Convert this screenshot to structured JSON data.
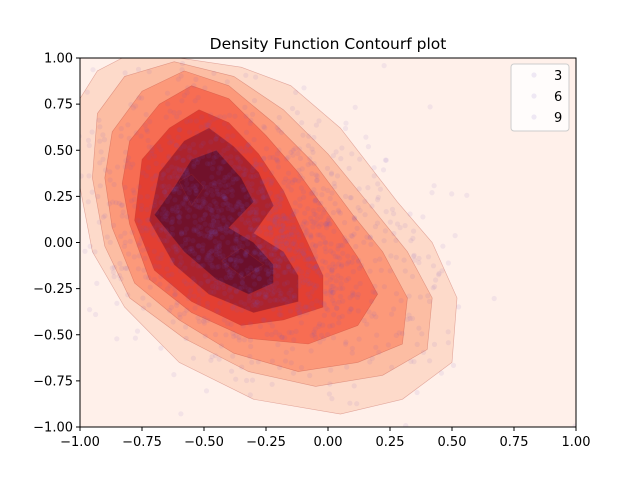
{
  "chart_data": {
    "type": "contourf",
    "title": "Density Function Contourf plot",
    "xlabel": "",
    "ylabel": "",
    "xlim": [
      -1.0,
      1.0
    ],
    "ylim": [
      -1.0,
      1.0
    ],
    "xticks": [
      "−1.00",
      "−0.75",
      "−0.50",
      "−0.25",
      "0.00",
      "0.25",
      "0.50",
      "0.75",
      "1.00"
    ],
    "yticks": [
      "1.00",
      "0.75",
      "0.50",
      "0.25",
      "0.00",
      "−0.25",
      "−0.50",
      "−0.75",
      "−1.00"
    ],
    "xtick_values": [
      -1.0,
      -0.75,
      -0.5,
      -0.25,
      0.0,
      0.25,
      0.5,
      0.75,
      1.0
    ],
    "ytick_values": [
      1.0,
      0.75,
      0.5,
      0.25,
      0.0,
      -0.25,
      -0.5,
      -0.75,
      -1.0
    ],
    "grid": false,
    "legend": {
      "placement": "top-right",
      "entries": [
        "3",
        "6",
        "9"
      ]
    },
    "colormap": [
      "#fff0ea",
      "#fdd7c7",
      "#fcb99f",
      "#fc9576",
      "#f6684f",
      "#e03a2f",
      "#a5202c",
      "#6a102b"
    ],
    "scatter_color": "#7a5cc8",
    "levels": [
      [
        [
          -1.0,
          0.78
        ],
        [
          -0.93,
          0.93
        ],
        [
          -0.83,
          1.0
        ],
        [
          -0.6,
          1.0
        ],
        [
          -0.35,
          0.95
        ],
        [
          -0.15,
          0.85
        ],
        [
          0.05,
          0.62
        ],
        [
          0.28,
          0.22
        ],
        [
          0.42,
          0.0
        ],
        [
          0.52,
          -0.3
        ],
        [
          0.5,
          -0.65
        ],
        [
          0.3,
          -0.85
        ],
        [
          0.05,
          -0.93
        ],
        [
          -0.3,
          -0.85
        ],
        [
          -0.6,
          -0.65
        ],
        [
          -0.82,
          -0.35
        ],
        [
          -0.95,
          -0.05
        ],
        [
          -1.0,
          0.3
        ]
      ],
      [
        [
          -0.93,
          0.7
        ],
        [
          -0.82,
          0.9
        ],
        [
          -0.62,
          0.98
        ],
        [
          -0.38,
          0.9
        ],
        [
          -0.18,
          0.72
        ],
        [
          0.0,
          0.48
        ],
        [
          0.17,
          0.2
        ],
        [
          0.32,
          -0.05
        ],
        [
          0.42,
          -0.3
        ],
        [
          0.4,
          -0.58
        ],
        [
          0.22,
          -0.72
        ],
        [
          -0.05,
          -0.78
        ],
        [
          -0.32,
          -0.7
        ],
        [
          -0.58,
          -0.52
        ],
        [
          -0.8,
          -0.3
        ],
        [
          -0.9,
          -0.02
        ],
        [
          -0.95,
          0.35
        ]
      ],
      [
        [
          -0.87,
          0.6
        ],
        [
          -0.75,
          0.82
        ],
        [
          -0.58,
          0.93
        ],
        [
          -0.4,
          0.85
        ],
        [
          -0.22,
          0.65
        ],
        [
          -0.05,
          0.42
        ],
        [
          0.1,
          0.15
        ],
        [
          0.22,
          -0.05
        ],
        [
          0.32,
          -0.3
        ],
        [
          0.3,
          -0.55
        ],
        [
          0.12,
          -0.65
        ],
        [
          -0.12,
          -0.7
        ],
        [
          -0.38,
          -0.6
        ],
        [
          -0.6,
          -0.42
        ],
        [
          -0.78,
          -0.22
        ],
        [
          -0.87,
          0.08
        ],
        [
          -0.9,
          0.35
        ]
      ],
      [
        [
          -0.8,
          0.55
        ],
        [
          -0.68,
          0.75
        ],
        [
          -0.55,
          0.85
        ],
        [
          -0.4,
          0.78
        ],
        [
          -0.25,
          0.58
        ],
        [
          -0.12,
          0.38
        ],
        [
          0.02,
          0.12
        ],
        [
          0.12,
          -0.08
        ],
        [
          0.2,
          -0.28
        ],
        [
          0.12,
          -0.45
        ],
        [
          -0.08,
          -0.55
        ],
        [
          -0.32,
          -0.52
        ],
        [
          -0.55,
          -0.38
        ],
        [
          -0.72,
          -0.2
        ],
        [
          -0.8,
          0.1
        ],
        [
          -0.83,
          0.32
        ]
      ],
      [
        [
          -0.75,
          0.45
        ],
        [
          -0.64,
          0.62
        ],
        [
          -0.52,
          0.72
        ],
        [
          -0.4,
          0.65
        ],
        [
          -0.28,
          0.48
        ],
        [
          -0.18,
          0.28
        ],
        [
          -0.1,
          0.05
        ],
        [
          -0.02,
          -0.18
        ],
        [
          -0.02,
          -0.35
        ],
        [
          -0.18,
          -0.42
        ],
        [
          -0.35,
          -0.45
        ],
        [
          -0.55,
          -0.32
        ],
        [
          -0.7,
          -0.15
        ],
        [
          -0.78,
          0.12
        ]
      ],
      [
        [
          -0.68,
          0.38
        ],
        [
          -0.58,
          0.55
        ],
        [
          -0.48,
          0.62
        ],
        [
          -0.38,
          0.52
        ],
        [
          -0.28,
          0.38
        ],
        [
          -0.22,
          0.2
        ],
        [
          -0.3,
          0.05
        ],
        [
          -0.18,
          -0.05
        ],
        [
          -0.12,
          -0.18
        ],
        [
          -0.12,
          -0.32
        ],
        [
          -0.3,
          -0.38
        ],
        [
          -0.48,
          -0.28
        ],
        [
          -0.62,
          -0.12
        ],
        [
          -0.72,
          0.12
        ]
      ],
      [
        [
          -0.62,
          0.3
        ],
        [
          -0.55,
          0.45
        ],
        [
          -0.45,
          0.5
        ],
        [
          -0.35,
          0.35
        ],
        [
          -0.3,
          0.22
        ],
        [
          -0.4,
          0.08
        ],
        [
          -0.3,
          0.0
        ],
        [
          -0.22,
          -0.12
        ],
        [
          -0.22,
          -0.22
        ],
        [
          -0.32,
          -0.28
        ],
        [
          -0.45,
          -0.2
        ],
        [
          -0.58,
          -0.05
        ],
        [
          -0.7,
          0.15
        ]
      ],
      [
        [
          -0.55,
          0.37
        ],
        [
          -0.5,
          0.3
        ],
        [
          -0.55,
          0.2
        ],
        [
          -0.6,
          0.33
        ]
      ],
      [
        [
          -0.43,
          -0.1
        ],
        [
          -0.35,
          -0.03
        ],
        [
          -0.26,
          -0.12
        ],
        [
          -0.34,
          -0.19
        ]
      ]
    ]
  }
}
